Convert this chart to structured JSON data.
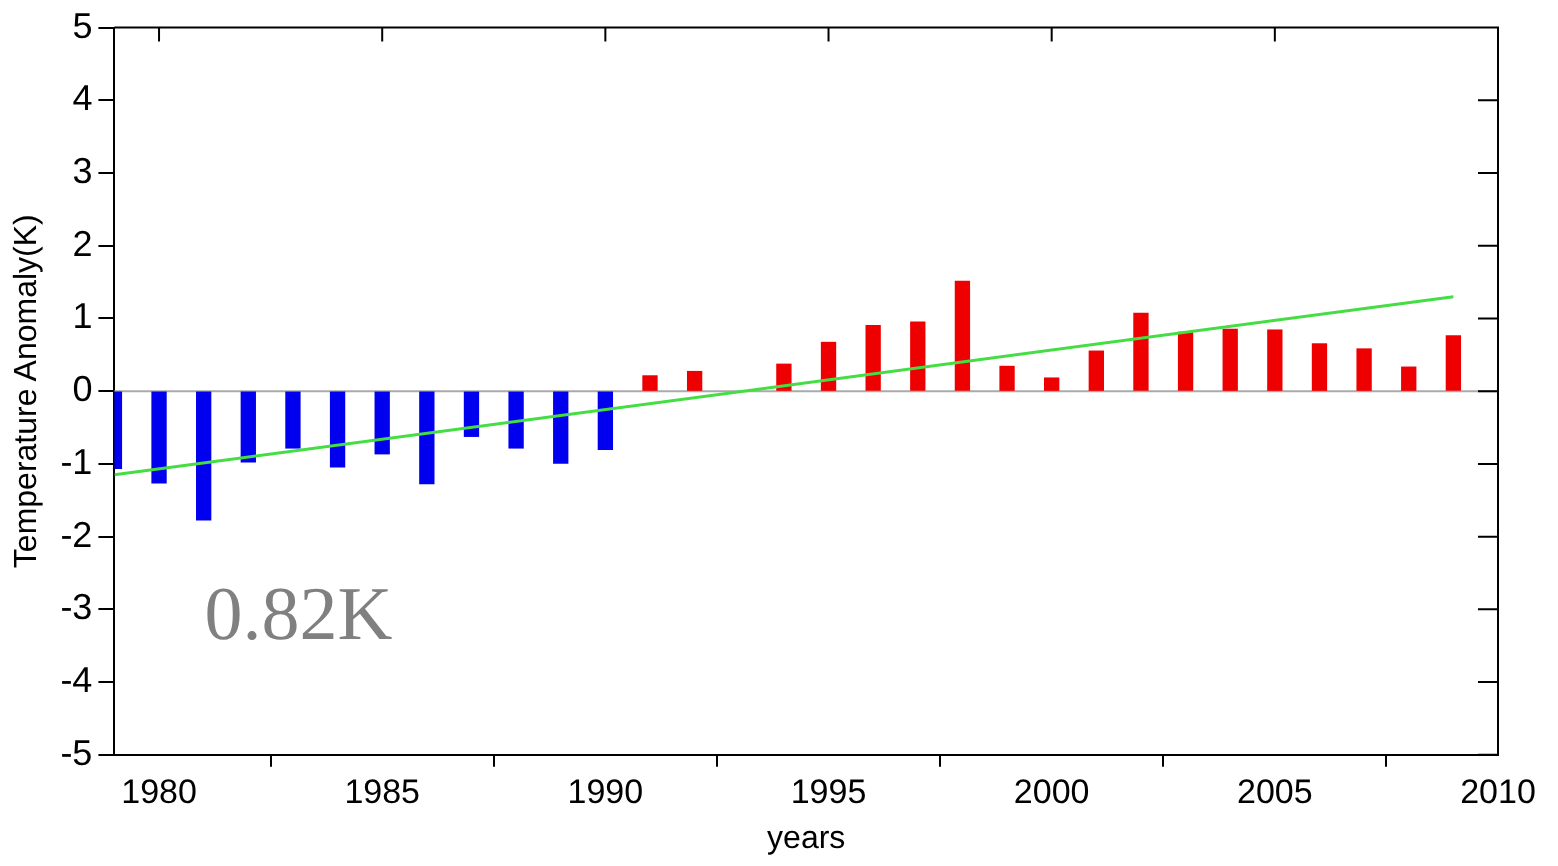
{
  "chart_data": {
    "type": "bar",
    "xlabel": "years",
    "ylabel": "Temperature Anomaly(K)",
    "xlim": [
      1979,
      2010
    ],
    "xticks": [
      1980,
      1985,
      1990,
      1995,
      2000,
      2005,
      2010
    ],
    "ylim": [
      -5,
      5
    ],
    "yticks": [
      -5,
      -4,
      -3,
      -2,
      -1,
      0,
      1,
      2,
      3,
      4,
      5
    ],
    "grid": false,
    "series": [
      {
        "x": [
          1979,
          1980,
          1981,
          1982,
          1983,
          1984,
          1985,
          1986,
          1987,
          1988,
          1989,
          1990,
          1991,
          1992,
          1993,
          1994,
          1995,
          1996,
          1997,
          1998,
          1999,
          2000,
          2001,
          2002,
          2003,
          2004,
          2005,
          2006,
          2007,
          2008,
          2009
        ],
        "values": [
          -1.06,
          -1.26,
          -1.77,
          -0.97,
          -0.78,
          -1.04,
          -0.86,
          -1.27,
          -0.62,
          -0.78,
          -0.99,
          -0.8,
          0.21,
          0.27,
          null,
          0.37,
          0.67,
          0.9,
          0.95,
          1.51,
          0.34,
          0.18,
          0.55,
          1.07,
          0.81,
          0.85,
          0.84,
          0.65,
          0.58,
          0.33,
          0.76
        ],
        "colors": [
          "#0000ee",
          "#0000ee",
          "#0000ee",
          "#0000ee",
          "#0000ee",
          "#0000ee",
          "#0000ee",
          "#0000ee",
          "#0000ee",
          "#0000ee",
          "#0000ee",
          "#0000ee",
          "#ee0000",
          "#ee0000",
          "#ee0000",
          "#ee0000",
          "#ee0000",
          "#ee0000",
          "#ee0000",
          "#ee0000",
          "#ee0000",
          "#ee0000",
          "#ee0000",
          "#ee0000",
          "#ee0000",
          "#ee0000",
          "#ee0000",
          "#ee0000",
          "#ee0000",
          "#ee0000",
          "#ee0000"
        ]
      },
      {
        "type": "line",
        "x": [
          1979,
          2009
        ],
        "values": [
          -1.15,
          1.3
        ],
        "color": "#44dd44"
      }
    ],
    "ref_lines": [
      {
        "axis": "y",
        "value": 0,
        "color": "#aaaaaa"
      }
    ],
    "annotations": [
      "0.82K"
    ]
  }
}
